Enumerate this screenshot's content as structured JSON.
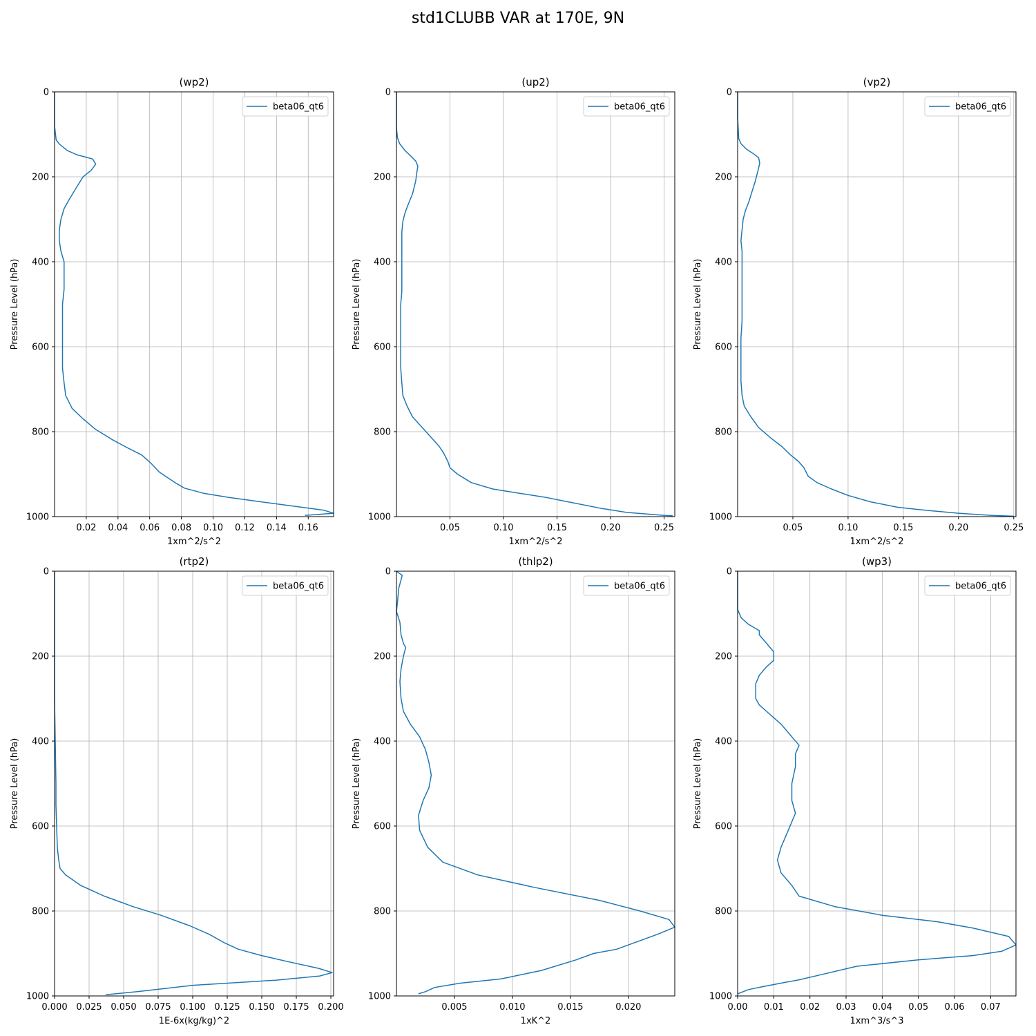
{
  "suptitle": "std1CLUBB VAR at 170E, 9N",
  "colors": {
    "series": "#1f77b4",
    "grid": "#b0b0b0",
    "axis": "#000000"
  },
  "chart_data": [
    {
      "type": "line",
      "title": "(wp2)",
      "xlabel": "1xm^2/s^2",
      "ylabel": "Pressure Level (hPa)",
      "xlim": [
        0.0,
        0.176
      ],
      "ylim": [
        1000,
        0
      ],
      "xticks": [
        0.02,
        0.04,
        0.06,
        0.08,
        0.1,
        0.12,
        0.14,
        0.16
      ],
      "xtick_labels": [
        "0.02",
        "0.04",
        "0.06",
        "0.08",
        "0.10",
        "0.12",
        "0.14",
        "0.16"
      ],
      "yticks": [
        0,
        200,
        400,
        600,
        800,
        1000
      ],
      "grid": true,
      "legend": "upper-right",
      "series": [
        {
          "name": "beta06_qt6",
          "x": [
            0.0,
            0.0,
            0.001,
            0.003,
            0.008,
            0.014,
            0.024,
            0.026,
            0.023,
            0.018,
            0.013,
            0.009,
            0.006,
            0.004,
            0.003,
            0.003,
            0.004,
            0.006,
            0.006,
            0.006,
            0.005,
            0.005,
            0.005,
            0.005,
            0.005,
            0.006,
            0.007,
            0.011,
            0.018,
            0.026,
            0.037,
            0.047,
            0.055,
            0.061,
            0.066,
            0.07,
            0.076,
            0.082,
            0.094,
            0.11,
            0.13,
            0.15,
            0.17,
            0.176,
            0.158
          ],
          "y": [
            0,
            80,
            113,
            123,
            138,
            148,
            158,
            170,
            185,
            200,
            230,
            255,
            275,
            300,
            325,
            350,
            375,
            400,
            430,
            465,
            500,
            535,
            570,
            600,
            650,
            685,
            715,
            745,
            770,
            795,
            820,
            840,
            855,
            875,
            895,
            905,
            920,
            933,
            945,
            955,
            965,
            975,
            985,
            992,
            997
          ]
        }
      ]
    },
    {
      "type": "line",
      "title": "(up2)",
      "xlabel": "1xm^2/s^2",
      "ylabel": "Pressure Level (hPa)",
      "xlim": [
        0.0,
        0.26
      ],
      "ylim": [
        1000,
        0
      ],
      "xticks": [
        0.05,
        0.1,
        0.15,
        0.2,
        0.25
      ],
      "xtick_labels": [
        "0.05",
        "0.10",
        "0.15",
        "0.20",
        "0.25"
      ],
      "yticks": [
        0,
        200,
        400,
        600,
        800,
        1000
      ],
      "grid": true,
      "legend": "upper-right",
      "series": [
        {
          "name": "beta06_qt6",
          "x": [
            0.0,
            0.0,
            0.001,
            0.003,
            0.008,
            0.013,
            0.018,
            0.02,
            0.019,
            0.018,
            0.015,
            0.011,
            0.008,
            0.006,
            0.005,
            0.005,
            0.005,
            0.005,
            0.005,
            0.005,
            0.004,
            0.004,
            0.004,
            0.004,
            0.004,
            0.005,
            0.006,
            0.01,
            0.015,
            0.024,
            0.033,
            0.04,
            0.044,
            0.048,
            0.05,
            0.057,
            0.07,
            0.09,
            0.115,
            0.14,
            0.16,
            0.19,
            0.215,
            0.25,
            0.258
          ],
          "y": [
            0,
            85,
            108,
            122,
            138,
            150,
            163,
            175,
            190,
            210,
            240,
            265,
            285,
            305,
            330,
            355,
            380,
            410,
            440,
            470,
            500,
            540,
            580,
            610,
            650,
            685,
            715,
            740,
            765,
            790,
            815,
            835,
            850,
            870,
            885,
            900,
            920,
            935,
            945,
            955,
            965,
            980,
            990,
            997,
            998
          ]
        }
      ]
    },
    {
      "type": "line",
      "title": "(vp2)",
      "xlabel": "1xm^2/s^2",
      "ylabel": "Pressure Level (hPa)",
      "xlim": [
        0.0,
        0.252
      ],
      "ylim": [
        1000,
        0
      ],
      "xticks": [
        0.05,
        0.1,
        0.15,
        0.2,
        0.25
      ],
      "xtick_labels": [
        "0.05",
        "0.10",
        "0.15",
        "0.20",
        "0.25"
      ],
      "yticks": [
        0,
        200,
        400,
        600,
        800,
        1000
      ],
      "grid": true,
      "legend": "upper-right",
      "series": [
        {
          "name": "beta06_qt6",
          "x": [
            0.0,
            0.0,
            0.001,
            0.003,
            0.008,
            0.014,
            0.019,
            0.02,
            0.018,
            0.016,
            0.013,
            0.01,
            0.007,
            0.005,
            0.004,
            0.003,
            0.004,
            0.004,
            0.004,
            0.004,
            0.004,
            0.004,
            0.003,
            0.003,
            0.003,
            0.003,
            0.004,
            0.006,
            0.012,
            0.019,
            0.03,
            0.04,
            0.048,
            0.055,
            0.06,
            0.064,
            0.072,
            0.085,
            0.1,
            0.12,
            0.145,
            0.17,
            0.2,
            0.23,
            0.25
          ],
          "y": [
            0,
            60,
            110,
            122,
            135,
            145,
            155,
            168,
            190,
            210,
            235,
            260,
            280,
            300,
            325,
            350,
            375,
            400,
            430,
            470,
            500,
            540,
            580,
            610,
            650,
            680,
            715,
            740,
            765,
            790,
            815,
            835,
            855,
            870,
            885,
            905,
            920,
            935,
            950,
            965,
            978,
            985,
            992,
            997,
            999
          ]
        }
      ]
    },
    {
      "type": "line",
      "title": "(rtp2)",
      "xlabel": "1E-6x(kg/kg)^2",
      "ylabel": "Pressure Level (hPa)",
      "xlim": [
        0.0,
        0.202
      ],
      "ylim": [
        1000,
        0
      ],
      "xticks": [
        0.0,
        0.025,
        0.05,
        0.075,
        0.1,
        0.125,
        0.15,
        0.175,
        0.2
      ],
      "xtick_labels": [
        "0.000",
        "0.025",
        "0.050",
        "0.075",
        "0.100",
        "0.125",
        "0.150",
        "0.175",
        "0.200"
      ],
      "yticks": [
        0,
        200,
        400,
        600,
        800,
        1000
      ],
      "grid": true,
      "legend": "upper-right",
      "series": [
        {
          "name": "beta06_qt6",
          "x": [
            0.0,
            0.0,
            0.0005,
            0.001,
            0.001,
            0.0015,
            0.002,
            0.003,
            0.004,
            0.008,
            0.019,
            0.036,
            0.057,
            0.077,
            0.098,
            0.112,
            0.123,
            0.133,
            0.15,
            0.17,
            0.191,
            0.201,
            0.192,
            0.16,
            0.1,
            0.06,
            0.037
          ],
          "y": [
            0,
            300,
            400,
            500,
            550,
            600,
            650,
            680,
            700,
            715,
            740,
            765,
            790,
            810,
            835,
            855,
            875,
            890,
            905,
            920,
            935,
            945,
            953,
            963,
            975,
            990,
            997
          ]
        }
      ]
    },
    {
      "type": "line",
      "title": "(thlp2)",
      "xlabel": "1xK^2",
      "ylabel": "Pressure Level (hPa)",
      "xlim": [
        0.0,
        0.024
      ],
      "ylim": [
        1000,
        0
      ],
      "xticks": [
        0.005,
        0.01,
        0.015,
        0.02
      ],
      "xtick_labels": [
        "0.005",
        "0.010",
        "0.015",
        "0.020"
      ],
      "yticks": [
        0,
        200,
        400,
        600,
        800,
        1000
      ],
      "grid": true,
      "legend": "upper-right",
      "series": [
        {
          "name": "beta06_qt6",
          "x": [
            0.0,
            0.0005,
            0.0004,
            0.0002,
            0.0001,
            0.0,
            0.0003,
            0.0004,
            0.0006,
            0.0008,
            0.0006,
            0.0004,
            0.0003,
            0.0004,
            0.0006,
            0.0012,
            0.002,
            0.0025,
            0.0028,
            0.003,
            0.0028,
            0.0023,
            0.0019,
            0.002,
            0.0027,
            0.004,
            0.007,
            0.012,
            0.0175,
            0.021,
            0.0235,
            0.024,
            0.0225,
            0.0205,
            0.019,
            0.017,
            0.0155,
            0.0125,
            0.009,
            0.0055,
            0.0033,
            0.0025,
            0.0019
          ],
          "y": [
            0,
            10,
            20,
            40,
            70,
            95,
            120,
            150,
            170,
            180,
            200,
            230,
            260,
            300,
            330,
            360,
            390,
            420,
            450,
            480,
            510,
            540,
            575,
            610,
            650,
            685,
            715,
            745,
            775,
            800,
            820,
            838,
            855,
            875,
            890,
            900,
            915,
            940,
            960,
            970,
            980,
            990,
            995
          ]
        }
      ]
    },
    {
      "type": "line",
      "title": "(wp3)",
      "xlabel": "1xm^3/s^3",
      "ylabel": "Pressure Level (hPa)",
      "xlim": [
        0.0,
        0.077
      ],
      "ylim": [
        1000,
        0
      ],
      "xticks": [
        0.0,
        0.01,
        0.02,
        0.03,
        0.04,
        0.05,
        0.06,
        0.07
      ],
      "xtick_labels": [
        "0.00",
        "0.01",
        "0.02",
        "0.03",
        "0.04",
        "0.05",
        "0.06",
        "0.07"
      ],
      "yticks": [
        0,
        200,
        400,
        600,
        800,
        1000
      ],
      "grid": true,
      "legend": "upper-right",
      "series": [
        {
          "name": "beta06_qt6",
          "x": [
            0.0,
            0.0,
            0.001,
            0.003,
            0.006,
            0.006,
            0.008,
            0.01,
            0.01,
            0.008,
            0.006,
            0.005,
            0.005,
            0.005,
            0.006,
            0.008,
            0.01,
            0.012,
            0.015,
            0.017,
            0.016,
            0.016,
            0.015,
            0.015,
            0.016,
            0.014,
            0.012,
            0.011,
            0.012,
            0.015,
            0.017,
            0.027,
            0.04,
            0.055,
            0.065,
            0.075,
            0.077,
            0.073,
            0.065,
            0.05,
            0.033,
            0.023,
            0.017,
            0.012,
            0.007,
            0.003,
            0.0
          ],
          "y": [
            0,
            90,
            110,
            125,
            140,
            150,
            170,
            190,
            210,
            225,
            245,
            265,
            280,
            300,
            315,
            330,
            345,
            360,
            390,
            410,
            430,
            460,
            500,
            540,
            570,
            610,
            650,
            680,
            710,
            740,
            765,
            790,
            810,
            825,
            840,
            860,
            880,
            895,
            905,
            915,
            930,
            950,
            962,
            970,
            978,
            985,
            995
          ]
        }
      ]
    }
  ]
}
